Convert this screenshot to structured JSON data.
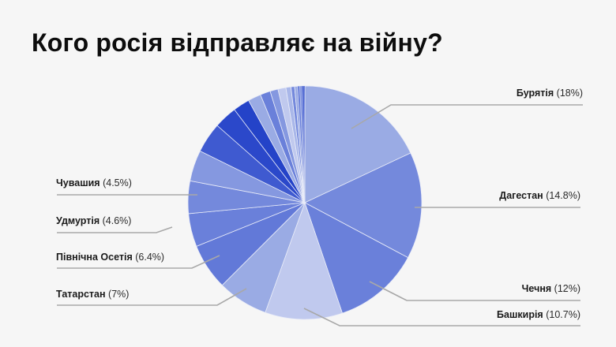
{
  "title": "Кого росія відправляє на війну?",
  "chart_data": {
    "type": "pie",
    "title": "Кого росія відправляє на війну?",
    "start_angle_deg": 0,
    "direction": "clockwise",
    "unit": "%",
    "labeled_slices": [
      {
        "name": "Бурятія",
        "value": 18,
        "pct_label": "(18%)",
        "color": "#9aabe4"
      },
      {
        "name": "Дагестан",
        "value": 14.8,
        "pct_label": "(14.8%)",
        "color": "#7489dc"
      },
      {
        "name": "Чечня",
        "value": 12,
        "pct_label": "(12%)",
        "color": "#6a80da"
      },
      {
        "name": "Башкирія",
        "value": 10.7,
        "pct_label": "(10.7%)",
        "color": "#c0c9ee"
      },
      {
        "name": "Татарстан",
        "value": 7,
        "pct_label": "(7%)",
        "color": "#9aabe4"
      },
      {
        "name": "Північна Осетія",
        "value": 6.4,
        "pct_label": "(6.4%)",
        "color": "#6279d8"
      },
      {
        "name": "Удмуртія",
        "value": 4.6,
        "pct_label": "(4.6%)",
        "color": "#6a80da"
      },
      {
        "name": "Чувашия",
        "value": 4.5,
        "pct_label": "(4.5%)",
        "color": "#7489dc"
      }
    ],
    "unlabeled_slices": [
      {
        "value": 4.3,
        "color": "#8598e0"
      },
      {
        "value": 4.2,
        "color": "#3f5ad0"
      },
      {
        "value": 3.2,
        "color": "#2b48ca"
      },
      {
        "value": 2.3,
        "color": "#2443c8"
      },
      {
        "value": 1.8,
        "color": "#9aabe4"
      },
      {
        "value": 1.4,
        "color": "#6a80da"
      },
      {
        "value": 1.1,
        "color": "#8598e0"
      },
      {
        "value": 1.1,
        "color": "#c0c9ee"
      },
      {
        "value": 0.7,
        "color": "#a9b7e9"
      },
      {
        "value": 0.5,
        "color": "#7489dc"
      },
      {
        "value": 0.4,
        "color": "#9aabe4"
      },
      {
        "value": 0.3,
        "color": "#6a80da"
      },
      {
        "value": 0.25,
        "color": "#8598e0"
      },
      {
        "value": 0.2,
        "color": "#3f5ad0"
      },
      {
        "value": 0.15,
        "color": "#2443c8"
      },
      {
        "value": 0.1,
        "color": "#1c3cc4"
      }
    ],
    "legend": "callout labels with leader lines",
    "background": "#f6f6f6",
    "leader_line_color": "#a8a8a8"
  },
  "labels": {
    "buryatia": {
      "name": "Бурятія",
      "pct": "(18%)"
    },
    "dagestan": {
      "name": "Дагестан",
      "pct": "(14.8%)"
    },
    "chechnya": {
      "name": "Чечня",
      "pct": "(12%)"
    },
    "bashkiria": {
      "name": "Башкирія",
      "pct": "(10.7%)"
    },
    "tatarstan": {
      "name": "Татарстан",
      "pct": "(7%)"
    },
    "north_ossetia": {
      "name": "Північна Осетія",
      "pct": "(6.4%)"
    },
    "udmurtia": {
      "name": "Удмуртія",
      "pct": "(4.6%)"
    },
    "chuvashia": {
      "name": "Чувашия",
      "pct": "(4.5%)"
    }
  }
}
